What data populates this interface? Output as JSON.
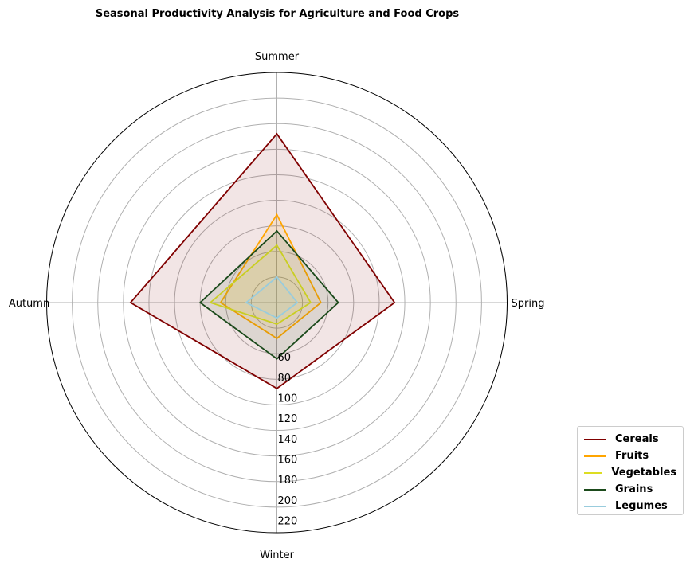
{
  "chart_data": {
    "type": "radar",
    "title": "Seasonal Productivity Analysis for Agriculture and Food Crops",
    "axes": [
      "Spring",
      "Summer",
      "Autumn",
      "Winter"
    ],
    "radial_ticks": [
      60,
      80,
      100,
      120,
      140,
      160,
      180,
      200,
      220
    ],
    "rlim": [
      0,
      225
    ],
    "grid": true,
    "legend_position": "lower-right",
    "series": [
      {
        "name": "Cereals",
        "values": [
          115,
          165,
          143,
          84
        ],
        "color": "#800000",
        "fill": true
      },
      {
        "name": "Fruits",
        "values": [
          43,
          86,
          55,
          35
        ],
        "color": "#FFA500",
        "fill": true
      },
      {
        "name": "Vegetables",
        "values": [
          33,
          56,
          65,
          21
        ],
        "color": "#DDDD22",
        "fill": true
      },
      {
        "name": "Grains",
        "values": [
          60,
          70,
          75,
          55
        ],
        "color": "#1B4A1B",
        "fill": true
      },
      {
        "name": "Legumes",
        "values": [
          20,
          25,
          30,
          15
        ],
        "color": "#99CCDD",
        "fill": true
      }
    ]
  }
}
